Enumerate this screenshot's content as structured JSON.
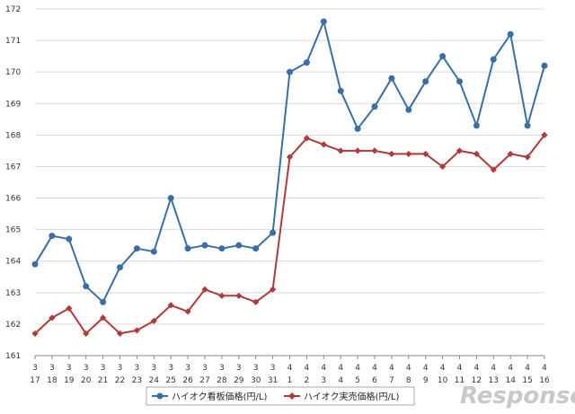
{
  "chart_data": {
    "type": "line",
    "title": "",
    "xlabel": "",
    "ylabel": "",
    "ylim": [
      161,
      172
    ],
    "yticks": [
      161,
      162,
      163,
      164,
      165,
      166,
      167,
      168,
      169,
      170,
      171,
      172
    ],
    "grid": true,
    "legend": "bottom-center",
    "categories_month": [
      "3",
      "3",
      "3",
      "3",
      "3",
      "3",
      "3",
      "3",
      "3",
      "3",
      "3",
      "3",
      "3",
      "3",
      "3",
      "4",
      "4",
      "4",
      "4",
      "4",
      "4",
      "4",
      "4",
      "4",
      "4",
      "4",
      "4",
      "4",
      "4",
      "4",
      "4"
    ],
    "categories_day": [
      "17",
      "18",
      "19",
      "20",
      "21",
      "22",
      "23",
      "24",
      "25",
      "26",
      "27",
      "28",
      "29",
      "30",
      "31",
      "1",
      "2",
      "3",
      "4",
      "5",
      "6",
      "7",
      "8",
      "9",
      "10",
      "11",
      "12",
      "13",
      "14",
      "15",
      "16"
    ],
    "series": [
      {
        "name": "ハイオク看板価格(円/L)",
        "color": "#3a6ea5",
        "marker": "circle",
        "values": [
          163.9,
          164.8,
          164.7,
          163.2,
          162.7,
          163.8,
          164.4,
          164.3,
          166.0,
          164.4,
          164.5,
          164.4,
          164.5,
          164.4,
          164.9,
          170.0,
          170.3,
          171.6,
          169.4,
          168.2,
          168.9,
          169.8,
          168.8,
          169.7,
          170.5,
          169.7,
          168.3,
          170.4,
          171.2,
          168.3,
          170.2
        ]
      },
      {
        "name": "ハイオク実売価格(円/L)",
        "color": "#b03a3a",
        "marker": "diamond",
        "values": [
          161.7,
          162.2,
          162.5,
          161.7,
          162.2,
          161.7,
          161.8,
          162.1,
          162.6,
          162.4,
          163.1,
          162.9,
          162.9,
          162.7,
          163.1,
          167.3,
          167.9,
          167.7,
          167.5,
          167.5,
          167.5,
          167.4,
          167.4,
          167.4,
          167.0,
          167.5,
          167.4,
          166.9,
          167.4,
          167.3,
          168.0
        ]
      }
    ]
  },
  "watermark": {
    "text": "Response."
  }
}
